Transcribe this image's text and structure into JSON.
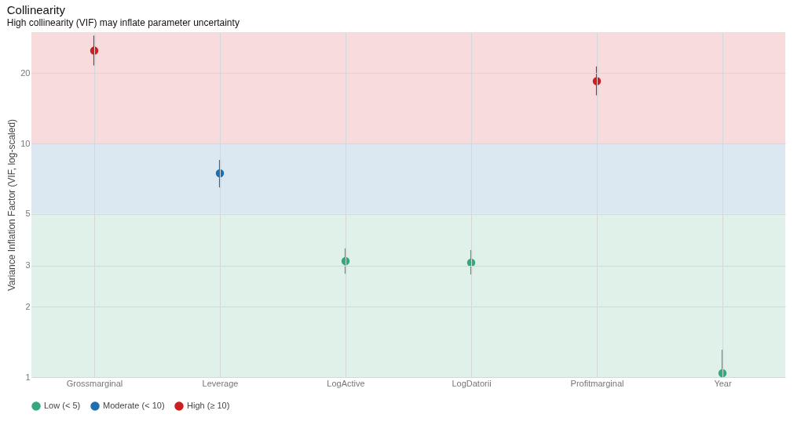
{
  "chart_data": {
    "type": "scatter",
    "title": "Collinearity",
    "subtitle": "High collinearity (VIF) may inflate parameter uncertainty",
    "ylabel": "Variance Inflation Factor (VIF, log-scaled)",
    "categories": [
      "Grossmarginal",
      "Leverage",
      "LogActive",
      "LogDatorii",
      "Profitmarginal",
      "Year"
    ],
    "series": [
      {
        "name": "Low (< 5)",
        "color": "#35a97e",
        "values": [
          null,
          null,
          3.14,
          3.09,
          null,
          1.04
        ],
        "errors": [
          null,
          null,
          [
            2.77,
            3.56
          ],
          [
            2.75,
            3.5
          ],
          null,
          [
            1,
            1.31
          ]
        ]
      },
      {
        "name": "Moderate (< 10)",
        "color": "#1f6fb0",
        "values": [
          null,
          7.46,
          null,
          null,
          null,
          null
        ],
        "errors": [
          null,
          [
            6.49,
            8.51
          ],
          null,
          null,
          null,
          null
        ]
      },
      {
        "name": "High (≥ 10)",
        "color": "#cc1f1f",
        "values": [
          25,
          null,
          null,
          null,
          18.5,
          null
        ],
        "errors": [
          [
            21.6,
            29
          ],
          null,
          null,
          null,
          [
            16.1,
            21.4
          ],
          null
        ]
      }
    ],
    "bands": [
      {
        "axis": "y",
        "from": 1,
        "to": 5,
        "color": "#e0f1ea"
      },
      {
        "axis": "y",
        "from": 5,
        "to": 10,
        "color": "#dce8f1"
      },
      {
        "axis": "y",
        "from": 10,
        "to": 30,
        "color": "#f8dcdd"
      }
    ],
    "log": true,
    "ylim": [
      1,
      30
    ],
    "yticks": [
      1,
      2,
      3,
      5,
      10,
      20
    ],
    "grid": true,
    "legend": "bottom",
    "marker": "circle"
  }
}
